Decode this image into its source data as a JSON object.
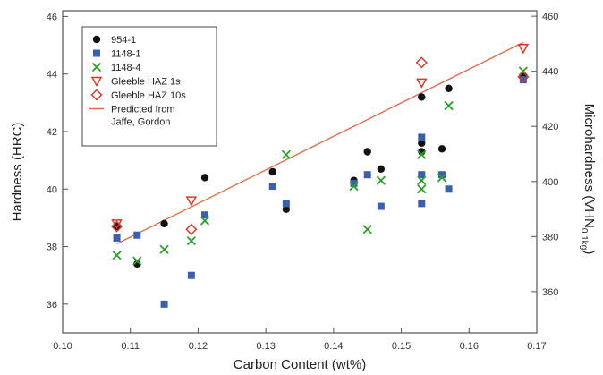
{
  "chart_data": {
    "type": "scatter",
    "title": "",
    "xlabel": "Carbon Content (wt%)",
    "ylabel_left": "Hardness (HRC)",
    "ylabel_right": "Microhardness (VHN",
    "ylabel_right_subscript": "0.1kg",
    "ylabel_right_suffix": ")",
    "xlim": [
      0.1,
      0.17
    ],
    "ylim_left": [
      35,
      46.2
    ],
    "ylim_right": [
      345,
      462
    ],
    "x_ticks": [
      0.1,
      0.11,
      0.12,
      0.13,
      0.14,
      0.15,
      0.16,
      0.17
    ],
    "x_tick_labels": [
      "0.10",
      "0.11",
      "0.12",
      "0.13",
      "0.14",
      "0.15",
      "0.16",
      "0.17"
    ],
    "y_left_ticks": [
      36,
      38,
      40,
      42,
      44,
      46
    ],
    "y_left_tick_labels": [
      "36",
      "38",
      "40",
      "42",
      "44",
      "46"
    ],
    "y_right_ticks": [
      360,
      380,
      400,
      420,
      440,
      460
    ],
    "y_right_tick_labels": [
      "360",
      "380",
      "400",
      "420",
      "440",
      "460"
    ],
    "grid": false,
    "legend_position": "top-left",
    "series": [
      {
        "name": "954-1",
        "marker": "circle",
        "color": "#111111",
        "points": [
          [
            0.108,
            38.7
          ],
          [
            0.111,
            37.4
          ],
          [
            0.115,
            38.8
          ],
          [
            0.121,
            40.4
          ],
          [
            0.131,
            40.6
          ],
          [
            0.133,
            39.3
          ],
          [
            0.143,
            40.3
          ],
          [
            0.145,
            41.3
          ],
          [
            0.147,
            40.7
          ],
          [
            0.153,
            43.2
          ],
          [
            0.153,
            41.6
          ],
          [
            0.153,
            41.3
          ],
          [
            0.156,
            41.4
          ],
          [
            0.157,
            43.5
          ],
          [
            0.168,
            43.9
          ]
        ]
      },
      {
        "name": "1148-1",
        "marker": "square",
        "color": "#3a5fb0",
        "points": [
          [
            0.108,
            38.3
          ],
          [
            0.111,
            38.4
          ],
          [
            0.115,
            36.0
          ],
          [
            0.119,
            37.0
          ],
          [
            0.121,
            39.1
          ],
          [
            0.131,
            40.1
          ],
          [
            0.133,
            39.5
          ],
          [
            0.143,
            40.2
          ],
          [
            0.145,
            40.5
          ],
          [
            0.147,
            39.4
          ],
          [
            0.153,
            41.8
          ],
          [
            0.153,
            40.5
          ],
          [
            0.153,
            39.5
          ],
          [
            0.156,
            40.5
          ],
          [
            0.157,
            40.0
          ],
          [
            0.168,
            43.8
          ]
        ]
      },
      {
        "name": "1148-4",
        "marker": "x",
        "color": "#2aa02a",
        "points": [
          [
            0.108,
            37.7
          ],
          [
            0.111,
            37.5
          ],
          [
            0.115,
            37.9
          ],
          [
            0.119,
            38.2
          ],
          [
            0.121,
            38.9
          ],
          [
            0.133,
            41.2
          ],
          [
            0.143,
            40.1
          ],
          [
            0.145,
            38.6
          ],
          [
            0.147,
            40.3
          ],
          [
            0.153,
            41.2
          ],
          [
            0.153,
            40.3
          ],
          [
            0.153,
            40.0
          ],
          [
            0.156,
            40.4
          ],
          [
            0.157,
            42.9
          ],
          [
            0.168,
            44.1
          ]
        ]
      },
      {
        "name": "Gleeble HAZ 1s",
        "marker": "triangle-down",
        "color": "#d83a2a",
        "points": [
          [
            0.108,
            38.8
          ],
          [
            0.119,
            39.6
          ],
          [
            0.153,
            43.7
          ],
          [
            0.168,
            44.9
          ]
        ]
      },
      {
        "name": "Gleeble HAZ 10s",
        "marker": "diamond",
        "color": "#d83a2a",
        "points": [
          [
            0.108,
            38.7
          ],
          [
            0.119,
            38.6
          ],
          [
            0.153,
            44.4
          ],
          [
            0.168,
            43.9
          ]
        ]
      },
      {
        "name": "Predicted from\nJaffe, Gordon",
        "marker": "line",
        "color": "#e0704a",
        "line": [
          [
            0.108,
            38.1
          ],
          [
            0.168,
            45.1
          ]
        ]
      }
    ]
  }
}
